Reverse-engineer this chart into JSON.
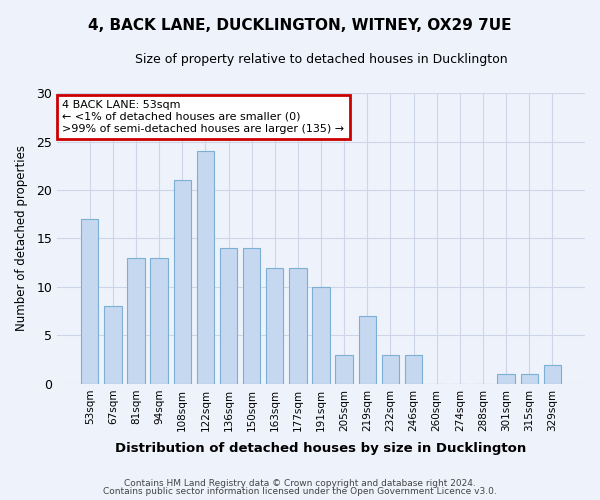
{
  "title1": "4, BACK LANE, DUCKLINGTON, WITNEY, OX29 7UE",
  "title2": "Size of property relative to detached houses in Ducklington",
  "xlabel": "Distribution of detached houses by size in Ducklington",
  "ylabel": "Number of detached properties",
  "categories": [
    "53sqm",
    "67sqm",
    "81sqm",
    "94sqm",
    "108sqm",
    "122sqm",
    "136sqm",
    "150sqm",
    "163sqm",
    "177sqm",
    "191sqm",
    "205sqm",
    "219sqm",
    "232sqm",
    "246sqm",
    "260sqm",
    "274sqm",
    "288sqm",
    "301sqm",
    "315sqm",
    "329sqm"
  ],
  "values": [
    17,
    8,
    13,
    13,
    21,
    24,
    14,
    14,
    12,
    12,
    10,
    3,
    7,
    3,
    3,
    0,
    0,
    0,
    1,
    1,
    2
  ],
  "bar_color": "#c5d8f0",
  "bar_edge_color": "#7bafd4",
  "annotation_title": "4 BACK LANE: 53sqm",
  "annotation_line1": "← <1% of detached houses are smaller (0)",
  "annotation_line2": ">99% of semi-detached houses are larger (135) →",
  "annotation_box_color": "#ffffff",
  "annotation_edge_color": "#cc0000",
  "ylim": [
    0,
    30
  ],
  "yticks": [
    0,
    5,
    10,
    15,
    20,
    25,
    30
  ],
  "footer1": "Contains HM Land Registry data © Crown copyright and database right 2024.",
  "footer2": "Contains public sector information licensed under the Open Government Licence v3.0.",
  "bg_color": "#eef2fa",
  "grid_color": "#cdd5e8"
}
